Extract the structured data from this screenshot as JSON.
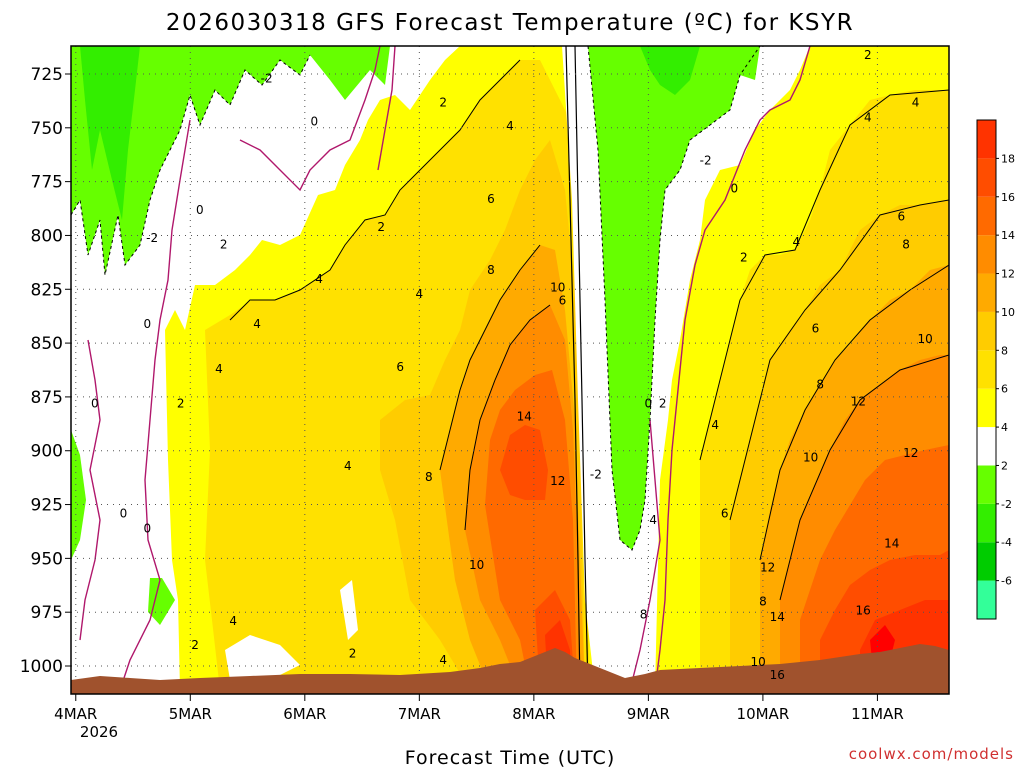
{
  "chart_data": {
    "type": "contour",
    "title": "2026030318 GFS Forecast Temperature (ºC) for KSYR",
    "xlabel": "Forecast Time (UTC)",
    "ylabel": "",
    "x_tick_labels": [
      "4MAR",
      "5MAR",
      "6MAR",
      "7MAR",
      "8MAR",
      "9MAR",
      "10MAR",
      "11MAR"
    ],
    "x_year_label": "2026",
    "x_tick_hours": [
      0,
      24,
      48,
      72,
      96,
      120,
      144,
      168
    ],
    "xlim_hours": [
      -1,
      183
    ],
    "y_tick_labels": [
      "725",
      "750",
      "775",
      "800",
      "825",
      "850",
      "875",
      "900",
      "925",
      "950",
      "975",
      "1000"
    ],
    "y_tick_values": [
      725,
      750,
      775,
      800,
      825,
      850,
      875,
      900,
      925,
      950,
      975,
      1000
    ],
    "ylim_hpa": [
      712,
      1013
    ],
    "colorbar": {
      "labels": [
        "18",
        "16",
        "14",
        "12",
        "10",
        "8",
        "6",
        "4",
        "2",
        "-2",
        "-4",
        "-6"
      ],
      "levels": [
        -8,
        -6,
        -4,
        -2,
        2,
        4,
        6,
        8,
        10,
        12,
        14,
        16,
        18,
        20
      ],
      "colors": [
        "#33ff99",
        "#00cc00",
        "#33ee00",
        "#66ff00",
        "#ffffff",
        "#ffff00",
        "#ffe100",
        "#ffcc00",
        "#ffaa00",
        "#ff8c00",
        "#ff6a00",
        "#ff4d00",
        "#ff3300",
        "#ff0000"
      ]
    },
    "contour_labels": [
      {
        "text": "-2",
        "hour": 40,
        "hpa": 729
      },
      {
        "text": "2",
        "hour": 77,
        "hpa": 740
      },
      {
        "text": "-2",
        "hour": 16,
        "hpa": 803
      },
      {
        "text": "0",
        "hour": 50,
        "hpa": 749
      },
      {
        "text": "0",
        "hour": 26,
        "hpa": 790
      },
      {
        "text": "2",
        "hour": 31,
        "hpa": 806
      },
      {
        "text": "2",
        "hour": 64,
        "hpa": 798
      },
      {
        "text": "4",
        "hour": 91,
        "hpa": 751
      },
      {
        "text": "6",
        "hour": 87,
        "hpa": 785
      },
      {
        "text": "8",
        "hour": 87,
        "hpa": 818
      },
      {
        "text": "4",
        "hour": 51,
        "hpa": 822
      },
      {
        "text": "4",
        "hour": 72,
        "hpa": 829
      },
      {
        "text": "10",
        "hour": 101,
        "hpa": 826
      },
      {
        "text": "6",
        "hour": 102,
        "hpa": 832
      },
      {
        "text": "0",
        "hour": 15,
        "hpa": 843
      },
      {
        "text": "4",
        "hour": 38,
        "hpa": 843
      },
      {
        "text": "4",
        "hour": 30,
        "hpa": 864
      },
      {
        "text": "6",
        "hour": 68,
        "hpa": 863
      },
      {
        "text": "2",
        "hour": 22,
        "hpa": 880
      },
      {
        "text": "0",
        "hour": 4,
        "hpa": 880
      },
      {
        "text": "14",
        "hour": 94,
        "hpa": 886
      },
      {
        "text": "0",
        "hour": 120,
        "hpa": 880
      },
      {
        "text": "2",
        "hour": 123,
        "hpa": 880
      },
      {
        "text": "4",
        "hour": 134,
        "hpa": 890
      },
      {
        "text": "4",
        "hour": 57,
        "hpa": 909
      },
      {
        "text": "8",
        "hour": 74,
        "hpa": 914
      },
      {
        "text": "12",
        "hour": 101,
        "hpa": 916
      },
      {
        "text": "-2",
        "hour": 109,
        "hpa": 913
      },
      {
        "text": "0",
        "hour": 10,
        "hpa": 931
      },
      {
        "text": "0",
        "hour": 15,
        "hpa": 938
      },
      {
        "text": "4",
        "hour": 121,
        "hpa": 934
      },
      {
        "text": "6",
        "hour": 136,
        "hpa": 931
      },
      {
        "text": "10",
        "hour": 84,
        "hpa": 955
      },
      {
        "text": "10",
        "hour": 154,
        "hpa": 905
      },
      {
        "text": "12",
        "hour": 175,
        "hpa": 903
      },
      {
        "text": "14",
        "hour": 171,
        "hpa": 945
      },
      {
        "text": "4",
        "hour": 33,
        "hpa": 981
      },
      {
        "text": "2",
        "hour": 25,
        "hpa": 992
      },
      {
        "text": "2",
        "hour": 58,
        "hpa": 996
      },
      {
        "text": "4",
        "hour": 77,
        "hpa": 999
      },
      {
        "text": "8",
        "hour": 119,
        "hpa": 978
      },
      {
        "text": "8",
        "hour": 144,
        "hpa": 972
      },
      {
        "text": "12",
        "hour": 145,
        "hpa": 956
      },
      {
        "text": "14",
        "hour": 147,
        "hpa": 979
      },
      {
        "text": "16",
        "hour": 165,
        "hpa": 976
      },
      {
        "text": "10",
        "hour": 143,
        "hpa": 1000
      },
      {
        "text": "16",
        "hour": 147,
        "hpa": 1006
      },
      {
        "text": "2",
        "hour": 166,
        "hpa": 718
      },
      {
        "text": "4",
        "hour": 166,
        "hpa": 747
      },
      {
        "text": "4",
        "hour": 176,
        "hpa": 740
      },
      {
        "text": "0",
        "hour": 138,
        "hpa": 780
      },
      {
        "text": "-2",
        "hour": 132,
        "hpa": 767
      },
      {
        "text": "6",
        "hour": 173,
        "hpa": 793
      },
      {
        "text": "2",
        "hour": 140,
        "hpa": 812
      },
      {
        "text": "4",
        "hour": 151,
        "hpa": 805
      },
      {
        "text": "8",
        "hour": 174,
        "hpa": 806
      },
      {
        "text": "6",
        "hour": 155,
        "hpa": 845
      },
      {
        "text": "10",
        "hour": 178,
        "hpa": 850
      },
      {
        "text": "8",
        "hour": 156,
        "hpa": 871
      },
      {
        "text": "12",
        "hour": 164,
        "hpa": 879
      }
    ]
  },
  "footer": {
    "credit": "coolwx.com/models"
  }
}
